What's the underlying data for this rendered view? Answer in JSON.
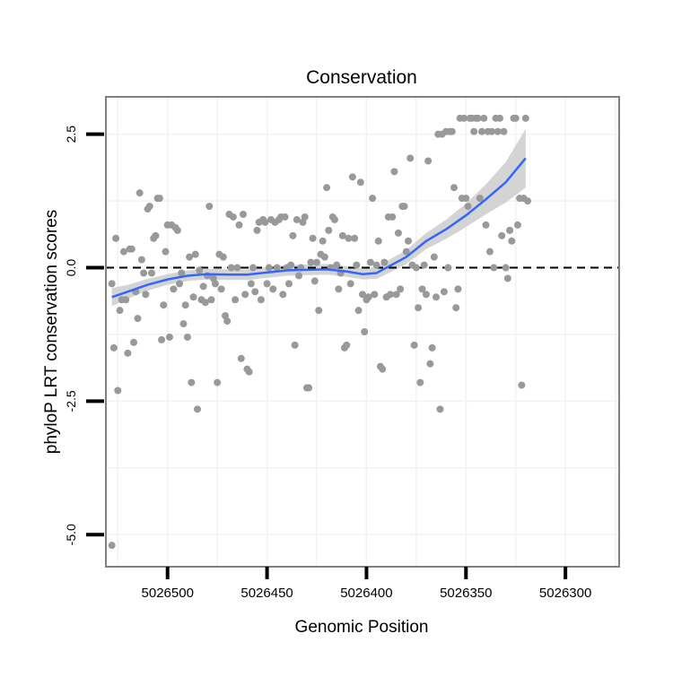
{
  "chart_data": {
    "type": "scatter",
    "title": "Conservation",
    "xlabel": "Genomic Position",
    "ylabel": "phyloP LRT conservation scores",
    "x_reversed": true,
    "xlim": [
      5026531,
      5026273
    ],
    "ylim": [
      -5.6,
      3.2
    ],
    "x_ticks": [
      5026500,
      5026450,
      5026400,
      5026350,
      5026300
    ],
    "x_tick_labels": [
      "5026500",
      "5026450",
      "5026400",
      "5026350",
      "5026300"
    ],
    "y_ticks": [
      2.5,
      0.0,
      -2.5,
      -5.0
    ],
    "y_tick_labels": [
      "2.5",
      "0.0",
      "-2.5",
      "-5.0"
    ],
    "reference_line": {
      "y": 0,
      "style": "dashed",
      "color": "#000000"
    },
    "colors": {
      "points": "#999999",
      "smooth": "#3366ff",
      "ribbon": "#cccccc",
      "panel_border": "#808080",
      "grid": "#f2f2f2"
    },
    "points": [
      [
        5026528,
        -0.3
      ],
      [
        5026527,
        -1.5
      ],
      [
        5026526,
        0.55
      ],
      [
        5026525,
        -2.3
      ],
      [
        5026524,
        -0.8
      ],
      [
        5026523,
        -0.6
      ],
      [
        5026522,
        0.3
      ],
      [
        5026521,
        -0.6
      ],
      [
        5026520,
        -1.6
      ],
      [
        5026519,
        0.35
      ],
      [
        5026518,
        0.35
      ],
      [
        5026517,
        -1.4
      ],
      [
        5026516,
        -0.45
      ],
      [
        5026515,
        -0.95
      ],
      [
        5026514,
        1.4
      ],
      [
        5026513,
        0.15
      ],
      [
        5026512,
        -0.1
      ],
      [
        5026511,
        -0.5
      ],
      [
        5026510,
        1.1
      ],
      [
        5026509,
        1.15
      ],
      [
        5026508,
        -0.1
      ],
      [
        5026507,
        0.55
      ],
      [
        5026506,
        0.6
      ],
      [
        5026505,
        1.3
      ],
      [
        5026504,
        1.3
      ],
      [
        5026503,
        -1.35
      ],
      [
        5026502,
        -0.7
      ],
      [
        5026501,
        0.3
      ],
      [
        5026500,
        0.8
      ],
      [
        5026499,
        -1.3
      ],
      [
        5026498,
        0.8
      ],
      [
        5026497,
        -0.4
      ],
      [
        5026496,
        0.75
      ],
      [
        5026495,
        0.7
      ],
      [
        5026494,
        -0.3
      ],
      [
        5026493,
        -0.1
      ],
      [
        5026492,
        -1.05
      ],
      [
        5026491,
        -0.7
      ],
      [
        5026490,
        -1.3
      ],
      [
        5026489,
        0.2
      ],
      [
        5026488,
        -2.15
      ],
      [
        5026487,
        -0.55
      ],
      [
        5026486,
        0.25
      ],
      [
        5026485,
        -2.65
      ],
      [
        5026484,
        -0.05
      ],
      [
        5026483,
        -0.6
      ],
      [
        5026482,
        -0.35
      ],
      [
        5026481,
        -0.65
      ],
      [
        5026480,
        -0.15
      ],
      [
        5026479,
        1.15
      ],
      [
        5026478,
        -0.6
      ],
      [
        5026477,
        -0.2
      ],
      [
        5026476,
        -0.3
      ],
      [
        5026475,
        -2.15
      ],
      [
        5026474,
        0.25
      ],
      [
        5026473,
        -0.4
      ],
      [
        5026472,
        0.2
      ],
      [
        5026471,
        -0.9
      ],
      [
        5026470,
        -1.0
      ],
      [
        5026469,
        1.0
      ],
      [
        5026468,
        0.0
      ],
      [
        5026467,
        0.95
      ],
      [
        5026466,
        -0.6
      ],
      [
        5026465,
        0.0
      ],
      [
        5026464,
        0.8
      ],
      [
        5026463,
        -1.7
      ],
      [
        5026462,
        1.0
      ],
      [
        5026461,
        -0.5
      ],
      [
        5026460,
        -1.9
      ],
      [
        5026459,
        -1.95
      ],
      [
        5026458,
        -0.3
      ],
      [
        5026457,
        0.0
      ],
      [
        5026456,
        -0.45
      ],
      [
        5026455,
        0.7
      ],
      [
        5026454,
        0.85
      ],
      [
        5026453,
        -0.6
      ],
      [
        5026452,
        0.9
      ],
      [
        5026451,
        0.85
      ],
      [
        5026450,
        -0.3
      ],
      [
        5026449,
        0.0
      ],
      [
        5026448,
        0.9
      ],
      [
        5026447,
        -0.4
      ],
      [
        5026446,
        0.85
      ],
      [
        5026445,
        0.0
      ],
      [
        5026444,
        0.9
      ],
      [
        5026443,
        0.95
      ],
      [
        5026442,
        -0.5
      ],
      [
        5026441,
        0.95
      ],
      [
        5026440,
        0.0
      ],
      [
        5026439,
        -0.3
      ],
      [
        5026438,
        0.05
      ],
      [
        5026437,
        0.6
      ],
      [
        5026436,
        -1.45
      ],
      [
        5026435,
        0.9
      ],
      [
        5026434,
        -0.15
      ],
      [
        5026433,
        0.0
      ],
      [
        5026432,
        0.85
      ],
      [
        5026431,
        0.95
      ],
      [
        5026430,
        -2.25
      ],
      [
        5026429,
        -2.25
      ],
      [
        5026428,
        0.1
      ],
      [
        5026427,
        0.55
      ],
      [
        5026426,
        -0.25
      ],
      [
        5026425,
        0.1
      ],
      [
        5026424,
        -0.8
      ],
      [
        5026423,
        0.25
      ],
      [
        5026422,
        0.5
      ],
      [
        5026421,
        0.2
      ],
      [
        5026420,
        1.5
      ],
      [
        5026419,
        0.7
      ],
      [
        5026418,
        0.0
      ],
      [
        5026417,
        0.95
      ],
      [
        5026416,
        0.9
      ],
      [
        5026415,
        0.05
      ],
      [
        5026414,
        -0.4
      ],
      [
        5026413,
        -0.1
      ],
      [
        5026412,
        0.6
      ],
      [
        5026411,
        -1.5
      ],
      [
        5026410,
        -1.45
      ],
      [
        5026409,
        0.55
      ],
      [
        5026408,
        -0.3
      ],
      [
        5026407,
        1.7
      ],
      [
        5026406,
        0.55
      ],
      [
        5026405,
        0.05
      ],
      [
        5026404,
        -0.8
      ],
      [
        5026403,
        1.6
      ],
      [
        5026402,
        -0.5
      ],
      [
        5026401,
        -1.2
      ],
      [
        5026400,
        -0.6
      ],
      [
        5026399,
        -0.55
      ],
      [
        5026398,
        0.1
      ],
      [
        5026397,
        1.3
      ],
      [
        5026396,
        -0.5
      ],
      [
        5026395,
        0.05
      ],
      [
        5026394,
        0.5
      ],
      [
        5026393,
        -1.85
      ],
      [
        5026392,
        -1.9
      ],
      [
        5026391,
        0.1
      ],
      [
        5026390,
        -0.55
      ],
      [
        5026389,
        0.95
      ],
      [
        5026388,
        -0.5
      ],
      [
        5026387,
        0.95
      ],
      [
        5026386,
        1.8
      ],
      [
        5026385,
        -0.5
      ],
      [
        5026384,
        0.65
      ],
      [
        5026383,
        -0.4
      ],
      [
        5026382,
        1.15
      ],
      [
        5026381,
        1.15
      ],
      [
        5026380,
        0.3
      ],
      [
        5026379,
        0.5
      ],
      [
        5026378,
        2.05
      ],
      [
        5026377,
        0.05
      ],
      [
        5026376,
        -1.45
      ],
      [
        5026375,
        0.0
      ],
      [
        5026374,
        -0.75
      ],
      [
        5026373,
        -2.15
      ],
      [
        5026372,
        -0.4
      ],
      [
        5026371,
        0.05
      ],
      [
        5026370,
        -0.5
      ],
      [
        5026369,
        2.0
      ],
      [
        5026368,
        -1.8
      ],
      [
        5026367,
        -1.5
      ],
      [
        5026366,
        0.2
      ],
      [
        5026365,
        -0.55
      ],
      [
        5026364,
        2.5
      ],
      [
        5026363,
        -2.65
      ],
      [
        5026362,
        2.5
      ],
      [
        5026361,
        -0.45
      ],
      [
        5026360,
        2.55
      ],
      [
        5026359,
        0.0
      ],
      [
        5026358,
        2.55
      ],
      [
        5026357,
        2.55
      ],
      [
        5026356,
        1.5
      ],
      [
        5026355,
        -0.75
      ],
      [
        5026354,
        -0.4
      ],
      [
        5026353,
        2.8
      ],
      [
        5026352,
        1.3
      ],
      [
        5026351,
        2.8
      ],
      [
        5026350,
        1.3
      ],
      [
        5026349,
        1.15
      ],
      [
        5026348,
        2.8
      ],
      [
        5026347,
        2.8
      ],
      [
        5026346,
        2.55
      ],
      [
        5026345,
        2.8
      ],
      [
        5026344,
        2.8
      ],
      [
        5026343,
        1.3
      ],
      [
        5026342,
        2.55
      ],
      [
        5026341,
        2.8
      ],
      [
        5026340,
        0.8
      ],
      [
        5026339,
        2.55
      ],
      [
        5026338,
        0.3
      ],
      [
        5026337,
        2.55
      ],
      [
        5026336,
        0.0
      ],
      [
        5026335,
        2.8
      ],
      [
        5026334,
        2.55
      ],
      [
        5026333,
        2.8
      ],
      [
        5026332,
        0.6
      ],
      [
        5026331,
        2.55
      ],
      [
        5026330,
        0.0
      ],
      [
        5026329,
        -0.2
      ],
      [
        5026328,
        0.7
      ],
      [
        5026327,
        0.5
      ],
      [
        5026326,
        2.8
      ],
      [
        5026325,
        2.8
      ],
      [
        5026324,
        0.8
      ],
      [
        5026323,
        1.3
      ],
      [
        5026322,
        -2.2
      ],
      [
        5026321,
        1.3
      ],
      [
        5026320,
        2.8
      ],
      [
        5026319,
        1.25
      ],
      [
        5026528,
        -5.2
      ]
    ],
    "smooth_curve": [
      [
        5026528,
        -0.55
      ],
      [
        5026520,
        -0.45
      ],
      [
        5026510,
        -0.32
      ],
      [
        5026500,
        -0.22
      ],
      [
        5026490,
        -0.15
      ],
      [
        5026480,
        -0.12
      ],
      [
        5026470,
        -0.13
      ],
      [
        5026460,
        -0.13
      ],
      [
        5026450,
        -0.09
      ],
      [
        5026440,
        -0.05
      ],
      [
        5026430,
        -0.04
      ],
      [
        5026420,
        -0.03
      ],
      [
        5026410,
        -0.07
      ],
      [
        5026402,
        -0.12
      ],
      [
        5026395,
        -0.1
      ],
      [
        5026390,
        0.0
      ],
      [
        5026380,
        0.2
      ],
      [
        5026370,
        0.5
      ],
      [
        5026360,
        0.72
      ],
      [
        5026350,
        0.98
      ],
      [
        5026340,
        1.28
      ],
      [
        5026330,
        1.6
      ],
      [
        5026320,
        2.05
      ]
    ],
    "smooth_band": [
      0.17,
      0.13,
      0.11,
      0.1,
      0.1,
      0.1,
      0.1,
      0.1,
      0.1,
      0.1,
      0.1,
      0.1,
      0.1,
      0.1,
      0.11,
      0.12,
      0.13,
      0.15,
      0.18,
      0.22,
      0.28,
      0.38,
      0.55
    ]
  }
}
